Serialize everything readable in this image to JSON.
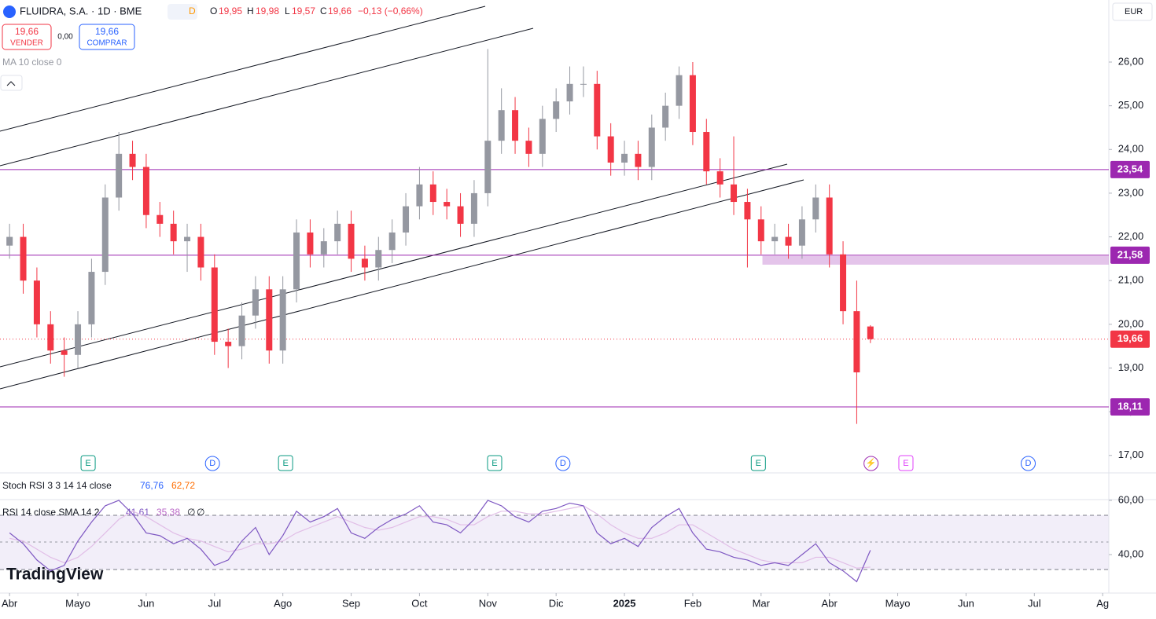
{
  "header": {
    "symbol": "FLUIDRA, S.A. · 1D · BME",
    "o_key": "O",
    "o": "19,95",
    "h_key": "H",
    "h": "19,98",
    "l_key": "L",
    "l": "19,57",
    "c_key": "C",
    "c": "19,66",
    "change": "−0,13 (−0,66%)",
    "sell_price": "19,66",
    "sell": "VENDER",
    "spread": "0,00",
    "buy_price": "19,66",
    "buy": "COMPRAR",
    "ma": "MA 10 close 0",
    "currency": "EUR",
    "logo": "TradingView"
  },
  "chart_data": [
    {
      "type": "candlestick",
      "up_color": "#9598a1",
      "down_color": "#f23645",
      "x": [
        0,
        0.2,
        0.4,
        0.6,
        0.8,
        1.0,
        1.2,
        1.4,
        1.6,
        1.8,
        2.0,
        2.2,
        2.4,
        2.6,
        2.8,
        3.0,
        3.2,
        3.4,
        3.6,
        3.8,
        4.0,
        4.2,
        4.4,
        4.6,
        4.8,
        5.0,
        5.2,
        5.4,
        5.6,
        5.8,
        6.0,
        6.2,
        6.4,
        6.6,
        6.8,
        7.0,
        7.2,
        7.4,
        7.6,
        7.8,
        8.0,
        8.2,
        8.4,
        8.6,
        8.8,
        9.0,
        9.2,
        9.4,
        9.6,
        9.8,
        10.0,
        10.2,
        10.4,
        10.6,
        10.8,
        11.0,
        11.2,
        11.4,
        11.6,
        11.8,
        12.0,
        12.2,
        12.4,
        12.6
      ],
      "open": [
        21.8,
        22.0,
        21.0,
        20.0,
        19.4,
        19.3,
        20.0,
        21.2,
        22.9,
        23.9,
        23.6,
        22.5,
        22.3,
        21.9,
        22.0,
        21.3,
        19.6,
        19.5,
        20.2,
        20.8,
        19.4,
        20.8,
        22.1,
        21.6,
        21.9,
        22.3,
        21.5,
        21.3,
        21.7,
        22.1,
        22.7,
        23.2,
        22.8,
        22.7,
        22.3,
        23.0,
        24.2,
        24.9,
        24.2,
        23.9,
        24.7,
        25.1,
        25.5,
        25.5,
        24.3,
        23.7,
        23.9,
        23.6,
        24.5,
        25.0,
        25.7,
        24.4,
        23.5,
        23.2,
        22.8,
        22.4,
        21.9,
        22.0,
        21.8,
        22.4,
        22.9,
        21.6,
        20.3,
        19.95
      ],
      "high": [
        22.3,
        22.3,
        21.3,
        20.3,
        19.7,
        20.3,
        21.5,
        23.2,
        24.4,
        24.2,
        23.9,
        22.8,
        22.6,
        22.3,
        22.3,
        21.6,
        19.9,
        20.5,
        21.1,
        21.1,
        21.1,
        22.4,
        22.4,
        22.2,
        22.6,
        22.6,
        21.8,
        22.0,
        22.4,
        23.0,
        23.6,
        23.5,
        23.1,
        23.0,
        23.3,
        26.3,
        25.4,
        25.2,
        24.5,
        25.0,
        25.4,
        25.9,
        25.9,
        25.8,
        24.6,
        24.2,
        24.2,
        24.8,
        25.3,
        25.9,
        26.0,
        24.7,
        23.8,
        24.3,
        23.1,
        22.7,
        22.3,
        22.3,
        22.7,
        23.2,
        23.2,
        21.9,
        21.0,
        19.98
      ],
      "low": [
        21.5,
        20.7,
        19.7,
        19.1,
        18.8,
        19.0,
        19.7,
        20.9,
        22.6,
        23.3,
        22.2,
        22.0,
        21.6,
        21.2,
        21.0,
        19.3,
        19.0,
        19.2,
        19.9,
        19.1,
        19.1,
        20.5,
        21.3,
        21.3,
        21.6,
        21.2,
        21.0,
        21.0,
        21.4,
        21.8,
        22.4,
        22.5,
        22.4,
        22.0,
        22.0,
        22.7,
        23.9,
        23.9,
        23.6,
        23.6,
        24.4,
        24.8,
        25.2,
        24.0,
        23.4,
        23.4,
        23.3,
        23.3,
        24.2,
        24.7,
        24.1,
        23.2,
        22.9,
        22.5,
        21.3,
        21.6,
        21.6,
        21.5,
        21.5,
        22.1,
        21.3,
        20.0,
        17.72,
        19.57
      ],
      "close": [
        22.0,
        21.0,
        20.0,
        19.4,
        19.3,
        20.0,
        21.2,
        22.9,
        23.9,
        23.6,
        22.5,
        22.3,
        21.9,
        22.0,
        21.3,
        19.6,
        19.5,
        20.2,
        20.8,
        19.4,
        20.8,
        22.1,
        21.6,
        21.9,
        22.3,
        21.5,
        21.3,
        21.7,
        22.1,
        22.7,
        23.2,
        22.8,
        22.7,
        22.3,
        23.0,
        24.2,
        24.9,
        24.2,
        23.9,
        24.7,
        25.1,
        25.5,
        25.5,
        24.3,
        23.7,
        23.9,
        23.6,
        24.5,
        25.0,
        25.7,
        24.4,
        23.5,
        23.2,
        22.8,
        22.4,
        21.9,
        22.0,
        21.8,
        22.4,
        22.9,
        21.6,
        20.3,
        18.9,
        19.66
      ],
      "xlim": [
        -0.14,
        16.09
      ],
      "xticks": [
        {
          "value": 0,
          "label": "Abr"
        },
        {
          "value": 1,
          "label": "Mayo"
        },
        {
          "value": 2,
          "label": "Jun"
        },
        {
          "value": 3,
          "label": "Jul"
        },
        {
          "value": 4,
          "label": "Ago"
        },
        {
          "value": 5,
          "label": "Sep"
        },
        {
          "value": 6,
          "label": "Oct"
        },
        {
          "value": 7,
          "label": "Nov"
        },
        {
          "value": 8,
          "label": "Dic"
        },
        {
          "value": 9,
          "label": "2025"
        },
        {
          "value": 10,
          "label": "Feb"
        },
        {
          "value": 11,
          "label": "Mar"
        },
        {
          "value": 12,
          "label": "Abr"
        },
        {
          "value": 13,
          "label": "Mayo"
        },
        {
          "value": 14,
          "label": "Jun"
        },
        {
          "value": 15,
          "label": "Jul"
        },
        {
          "value": 16,
          "label": "Ag"
        }
      ],
      "ylim": [
        16.6,
        27.42
      ],
      "yticks": [
        {
          "value": 17,
          "label": "17,00"
        },
        {
          "value": 18,
          "label": "18,00"
        },
        {
          "value": 19,
          "label": "19,00"
        },
        {
          "value": 20,
          "label": "20,00"
        },
        {
          "value": 21,
          "label": "21,00"
        },
        {
          "value": 22,
          "label": "22,00"
        },
        {
          "value": 23,
          "label": "23,00"
        },
        {
          "value": 24,
          "label": "24,00"
        },
        {
          "value": 25,
          "label": "25,00"
        },
        {
          "value": 26,
          "label": "26,00"
        }
      ],
      "levels": [
        {
          "value": 23.54,
          "label": "23,54",
          "color": "#9c27b0"
        },
        {
          "value": 21.58,
          "label": "21,58",
          "color": "#9c27b0"
        },
        {
          "value": 18.11,
          "label": "18,11",
          "color": "#9c27b0"
        },
        {
          "value": 19.66,
          "label": "19,66",
          "color": "#f23645"
        }
      ],
      "events": [
        {
          "x": 1.15,
          "label": "E",
          "color": "#089981"
        },
        {
          "x": 2.97,
          "label": "D",
          "color": "#2962ff"
        },
        {
          "x": 4.04,
          "label": "E",
          "color": "#089981"
        },
        {
          "x": 7.1,
          "label": "E",
          "color": "#089981"
        },
        {
          "x": 8.1,
          "label": "D",
          "color": "#2962ff"
        },
        {
          "x": 10.96,
          "label": "E",
          "color": "#089981"
        },
        {
          "x": 12.61,
          "label": "⚡",
          "color": "#9c27b0"
        },
        {
          "x": 13.12,
          "label": "E",
          "color": "#e040fb"
        },
        {
          "x": 14.91,
          "label": "D",
          "color": "#2962ff"
        }
      ]
    },
    {
      "type": "indicator",
      "title": "Stoch RSI 3 3 14 14 close",
      "value_labels": [
        {
          "label": "76,76",
          "color": "#2962ff"
        },
        {
          "label": "62,72",
          "color": "#ff6d00"
        }
      ]
    },
    {
      "type": "line",
      "title": "RSI 14 close SMA 14 2",
      "value_labels": [
        "41,61",
        "35,38",
        "∅",
        "∅"
      ],
      "x": [
        0,
        0.2,
        0.4,
        0.6,
        0.8,
        1.0,
        1.2,
        1.4,
        1.6,
        1.8,
        2.0,
        2.2,
        2.4,
        2.6,
        2.8,
        3.0,
        3.2,
        3.4,
        3.6,
        3.8,
        4.0,
        4.2,
        4.4,
        4.6,
        4.8,
        5.0,
        5.2,
        5.4,
        5.6,
        5.8,
        6.0,
        6.2,
        6.4,
        6.6,
        6.8,
        7.0,
        7.2,
        7.4,
        7.6,
        7.8,
        8.0,
        8.2,
        8.4,
        8.6,
        8.8,
        9.0,
        9.2,
        9.4,
        9.6,
        9.8,
        10.0,
        10.2,
        10.4,
        10.6,
        10.8,
        11.0,
        11.2,
        11.4,
        11.6,
        11.8,
        12.0,
        12.2,
        12.4,
        12.6
      ],
      "series": [
        {
          "name": "RSI",
          "color": "#7e57c2",
          "values": [
            48,
            44,
            38,
            34,
            36,
            45,
            52,
            58,
            60,
            55,
            48,
            47,
            44,
            46,
            42,
            36,
            38,
            45,
            50,
            40,
            47,
            56,
            52,
            54,
            57,
            48,
            46,
            50,
            53,
            55,
            58,
            52,
            51,
            48,
            53,
            60,
            58,
            54,
            52,
            56,
            57,
            59,
            58,
            48,
            44,
            46,
            43,
            50,
            54,
            57,
            48,
            42,
            41,
            39,
            38,
            36,
            37,
            36,
            40,
            44,
            37,
            34,
            30,
            41.61
          ]
        },
        {
          "name": "SMA",
          "color": "#e1bee7",
          "values": [
            46,
            45,
            42,
            39,
            37,
            39,
            43,
            48,
            53,
            56,
            54,
            51,
            48,
            46,
            45,
            43,
            41,
            42,
            44,
            44,
            45,
            48,
            50,
            52,
            54,
            52,
            50,
            49,
            50,
            52,
            54,
            54,
            53,
            51,
            51,
            54,
            56,
            56,
            55,
            55,
            56,
            57,
            58,
            55,
            51,
            48,
            46,
            46,
            48,
            51,
            51,
            48,
            45,
            42,
            40,
            38,
            37,
            37,
            37,
            39,
            39,
            37,
            35,
            35.38
          ]
        }
      ],
      "ylim": [
        25.8,
        60
      ],
      "yticks": [
        {
          "value": 40,
          "label": "40,00"
        },
        {
          "value": 60,
          "label": "60,00"
        }
      ]
    }
  ]
}
